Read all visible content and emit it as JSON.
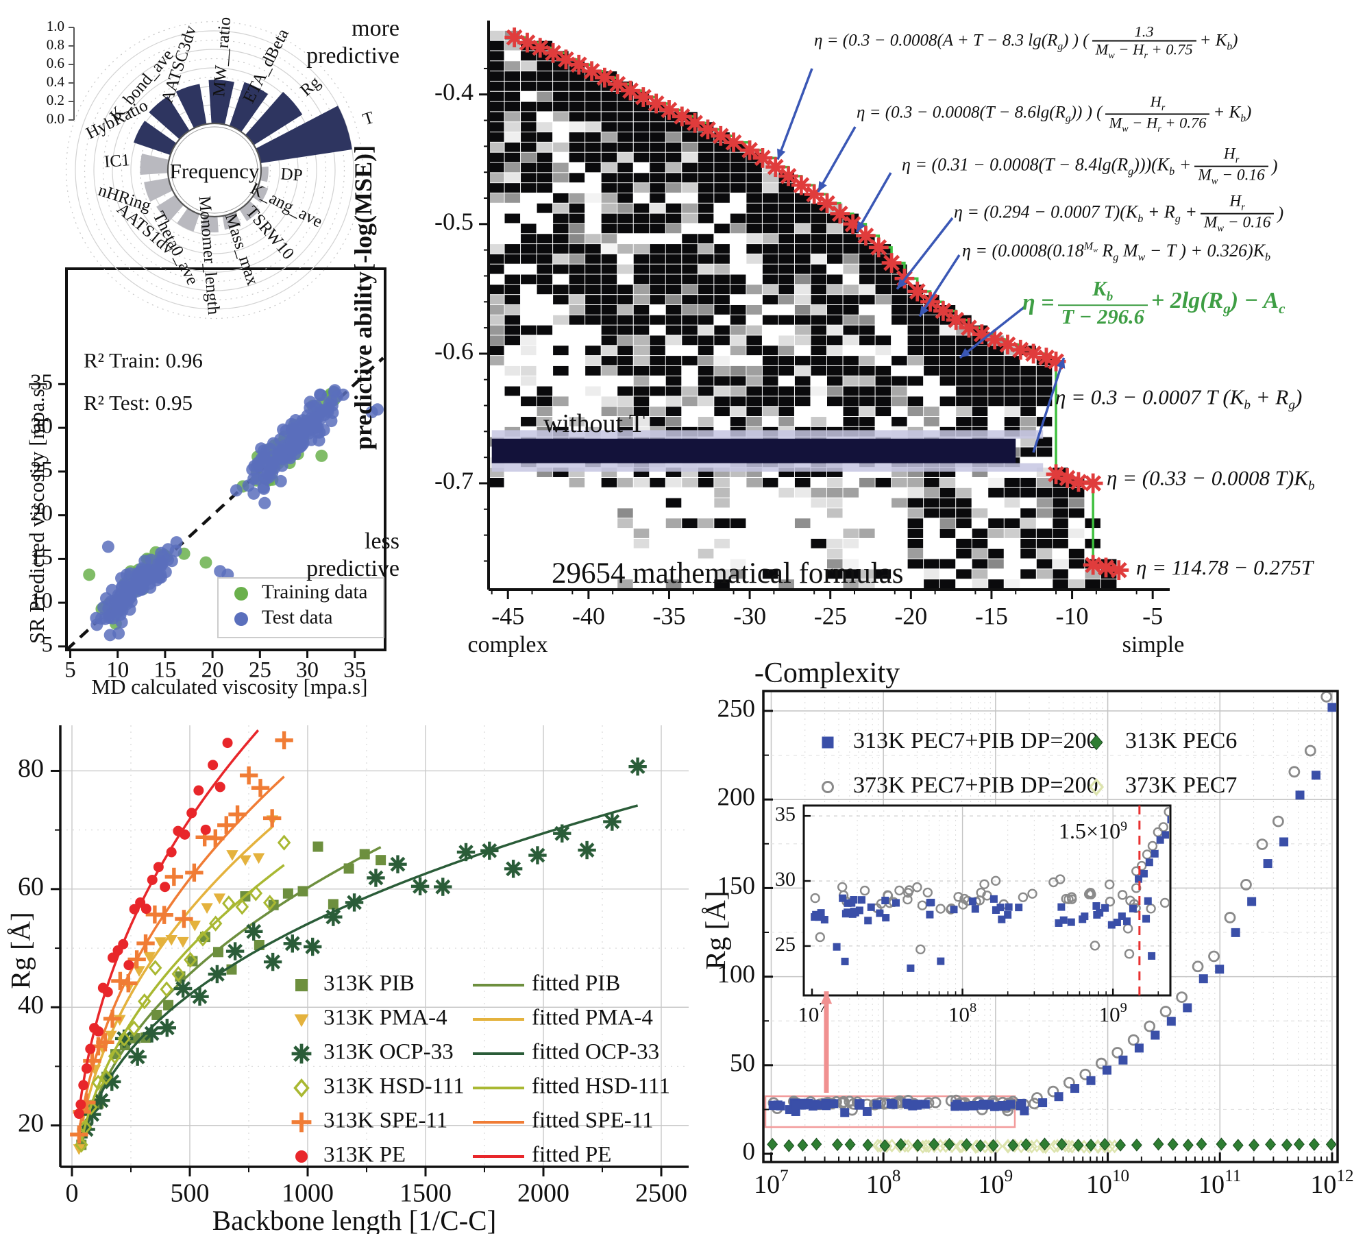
{
  "chart_data": [
    {
      "id": "feature-frequency-polar",
      "type": "bar",
      "subtype": "polar",
      "title": "Frequency",
      "radial_ticks": [
        "0.0",
        "0.2",
        "0.4",
        "0.6",
        "0.8",
        "1.0"
      ],
      "radial_range": [
        0.0,
        1.0
      ],
      "major_color": "#2e3560",
      "minor_color": "#b9b9bf",
      "categories": [
        "T",
        "Rg",
        "ETA_dBeta",
        "MW__ratio",
        "AATSC3dv",
        "K_bond_ave",
        "HybRatio",
        "IC1",
        "nHRing",
        "AATS1dv",
        "Theta0_ave",
        "Monomer_length",
        "Mass_max",
        "TSRW10",
        "K_ang_ave",
        "DP"
      ],
      "values": [
        1.0,
        0.62,
        0.5,
        0.47,
        0.44,
        0.44,
        0.42,
        0.3,
        0.27,
        0.24,
        0.2,
        0.17,
        0.15,
        0.15,
        0.11,
        0.08
      ],
      "groups": [
        "major",
        "major",
        "major",
        "major",
        "major",
        "major",
        "major",
        "minor",
        "minor",
        "minor",
        "minor",
        "minor",
        "minor",
        "minor",
        "minor",
        "minor"
      ]
    },
    {
      "id": "viscosity-parity-scatter",
      "type": "scatter",
      "r2_train": "R² Train: 0.96",
      "r2_test": "R² Test: 0.95",
      "xlabel": "MD calculated viscosity [mpa.s]",
      "ylabel": "SR Predicted viscosity [mpa.s]",
      "xticks": [
        5,
        10,
        15,
        20,
        25,
        30,
        35
      ],
      "yticks": [
        5,
        10,
        15,
        20,
        25,
        30,
        35
      ],
      "xlim": [
        4.6,
        38.2
      ],
      "ylim": [
        4.6,
        48.2
      ],
      "identity_line": true,
      "legend": [
        {
          "label": "Training data",
          "color": "#6ab04c"
        },
        {
          "label": "Test data",
          "color": "#5a6fbc"
        }
      ],
      "series": [
        {
          "name": "Training data",
          "color": "#6ab04c",
          "seed": 7,
          "clusters": [
            {
              "cx": 12.0,
              "cy": 12.3,
              "sx": 2.1,
              "sy": 1.5,
              "n": 34
            },
            {
              "cx": 28.2,
              "cy": 28.1,
              "sx": 3.0,
              "sy": 2.0,
              "n": 52
            }
          ],
          "extra": [
            [
              7.0,
              13.2
            ],
            [
              19.3,
              14.6
            ],
            [
              9.8,
              7.6
            ],
            [
              23.2,
              23.3
            ],
            [
              31.5,
              26.8
            ],
            [
              17.0,
              15.6
            ]
          ]
        },
        {
          "name": "Test data",
          "color": "#5a6fbc",
          "seed": 13,
          "clusters": [
            {
              "cx": 12.2,
              "cy": 12.1,
              "sx": 2.4,
              "sy": 1.7,
              "n": 115
            },
            {
              "cx": 28.4,
              "cy": 28.6,
              "sx": 3.2,
              "sy": 2.1,
              "n": 135
            }
          ],
          "extra": [
            [
              9.0,
              16.4
            ],
            [
              20.8,
              13.6
            ],
            [
              21.6,
              13.2
            ],
            [
              25.5,
              21.4
            ],
            [
              9.2,
              6.3
            ],
            [
              27.2,
              23.9
            ],
            [
              36.8,
              31.8
            ],
            [
              37.4,
              32.1
            ],
            [
              10.1,
              6.5
            ]
          ]
        }
      ]
    },
    {
      "id": "pareto-front-heatmap",
      "type": "heatmap",
      "ylabel": "predictive ability[-log(MSE)]",
      "xlabel": "-Complexity",
      "y_top_label_1": "more",
      "y_top_label_2": "predictive",
      "y_bottom_label_1": "less",
      "y_bottom_label_2": "predictive",
      "x_left_label": "complex",
      "x_right_label": "simple",
      "region_label": "without T",
      "count_label": "29654 mathematical formulas",
      "xticks": [
        -45,
        -40,
        -35,
        -30,
        -25,
        -20,
        -15,
        -10,
        -5
      ],
      "yticks": [
        -0.4,
        -0.5,
        -0.6,
        -0.7
      ],
      "xlim": [
        -46.2,
        -4.2
      ],
      "ylim": [
        -0.782,
        -0.343
      ],
      "front_color": "#3fbf3f",
      "star_color": "#e03c3c",
      "arrow_color": "#3a57b5",
      "band_color": "#13123a",
      "band_halo_color": "#c6c6e2",
      "band_x_range": [
        -46.0,
        -13.5
      ],
      "band_y_center": -0.675,
      "heatmap_seed": 99,
      "front": [
        [
          -44.6,
          -0.356
        ],
        [
          -43.8,
          -0.36
        ],
        [
          -43.0,
          -0.364
        ],
        [
          -42.2,
          -0.368
        ],
        [
          -41.4,
          -0.373
        ],
        [
          -40.6,
          -0.377
        ],
        [
          -39.8,
          -0.382
        ],
        [
          -39.0,
          -0.387
        ],
        [
          -38.2,
          -0.392
        ],
        [
          -37.4,
          -0.397
        ],
        [
          -36.6,
          -0.402
        ],
        [
          -35.8,
          -0.407
        ],
        [
          -35.0,
          -0.412
        ],
        [
          -34.2,
          -0.417
        ],
        [
          -33.4,
          -0.422
        ],
        [
          -32.6,
          -0.427
        ],
        [
          -31.8,
          -0.432
        ],
        [
          -31.0,
          -0.437
        ],
        [
          -30.0,
          -0.443
        ],
        [
          -29.2,
          -0.449
        ],
        [
          -28.4,
          -0.456
        ],
        [
          -27.6,
          -0.463
        ],
        [
          -26.8,
          -0.47
        ],
        [
          -26.0,
          -0.477
        ],
        [
          -25.2,
          -0.484
        ],
        [
          -24.4,
          -0.492
        ],
        [
          -23.6,
          -0.5
        ],
        [
          -22.8,
          -0.509
        ],
        [
          -22.0,
          -0.518
        ],
        [
          -21.2,
          -0.53
        ],
        [
          -20.4,
          -0.542
        ],
        [
          -19.6,
          -0.552
        ],
        [
          -18.8,
          -0.56
        ],
        [
          -18.0,
          -0.567
        ],
        [
          -17.2,
          -0.574
        ],
        [
          -16.4,
          -0.58
        ],
        [
          -15.6,
          -0.585
        ],
        [
          -14.8,
          -0.589
        ],
        [
          -14.0,
          -0.593
        ],
        [
          -13.2,
          -0.597
        ],
        [
          -12.4,
          -0.6
        ],
        [
          -11.6,
          -0.603
        ],
        [
          -11.0,
          -0.606
        ],
        [
          -11.0,
          -0.693
        ],
        [
          -10.3,
          -0.696
        ],
        [
          -9.6,
          -0.699
        ],
        [
          -8.7,
          -0.7
        ],
        [
          -8.7,
          -0.763
        ],
        [
          -7.9,
          -0.765
        ],
        [
          -7.1,
          -0.767
        ]
      ],
      "formulas": [
        {
          "color": "#111111",
          "highlight": false,
          "parts": [
            {
              "t": "η =  (0.3 − 0.0008(A + T −  8.3 lg(R_g) )  ("
            },
            {
              "n": "1.3",
              "d": "M_w − H_r + 0.75"
            },
            {
              "t": "+ K_b)"
            }
          ]
        },
        {
          "color": "#111111",
          "highlight": false,
          "parts": [
            {
              "t": "η = (0.3 − 0.0008(T − 8.6lg(R_g)) )  ("
            },
            {
              "n": "H_r",
              "d": "M_w − H_r + 0.76"
            },
            {
              "t": "+ K_b)"
            }
          ]
        },
        {
          "color": "#111111",
          "highlight": false,
          "parts": [
            {
              "t": "η = (0.31 − 0.0008(T − 8.4lg(R_g)))(K_b +"
            },
            {
              "n": "H_r",
              "d": "M_w − 0.16"
            },
            {
              "t": ")"
            }
          ]
        },
        {
          "color": "#111111",
          "highlight": false,
          "parts": [
            {
              "t": "η = (0.294 − 0.0007 T)(K_b + R_g +"
            },
            {
              "n": "H_r",
              "d": "M_w − 0.16"
            },
            {
              "t": ")"
            }
          ]
        },
        {
          "color": "#111111",
          "highlight": false,
          "parts": [
            {
              "t": "η = (0.0008(0.18^{M_w} R_g M_w − T ) + 0.326)K_b"
            }
          ]
        },
        {
          "color": "#3e9e44",
          "highlight": true,
          "parts": [
            {
              "t": "η ="
            },
            {
              "n": "K_b",
              "d": "T − 296.6"
            },
            {
              "t": "+ 2lg(R_g) − A_c"
            }
          ]
        },
        {
          "color": "#111111",
          "highlight": false,
          "parts": [
            {
              "t": "η = 0.3 − 0.0007 T (K_b + R_g)"
            }
          ]
        },
        {
          "color": "#111111",
          "highlight": false,
          "parts": [
            {
              "t": "η = (0.33 − 0.0008 T)K_b"
            }
          ]
        },
        {
          "color": "#111111",
          "highlight": false,
          "parts": [
            {
              "t": "η = 114.78 − 0.275T"
            }
          ]
        }
      ]
    },
    {
      "id": "rg-vs-backbone-length",
      "type": "scatter",
      "xlabel": "Backbone length [1/C-C]",
      "ylabel": "Rg [Å]",
      "xticks": [
        0,
        500,
        1000,
        1500,
        2000,
        2500
      ],
      "yticks": [
        20,
        40,
        60,
        80
      ],
      "xlim": [
        0,
        2560
      ],
      "ylim": [
        13,
        88.5
      ],
      "series": [
        {
          "label": "313K PIB",
          "fitted_label": "fitted PIB",
          "color": "#6d8f3e",
          "marker": "square",
          "a": 3.8,
          "b": 0.4,
          "xmin": 40,
          "xmax": 1310,
          "n": 26,
          "noise": 0.09,
          "seed": 11
        },
        {
          "label": "313K PMA-4",
          "fitted_label": "fitted PMA-4",
          "color": "#e4b23d",
          "marker": "tridown",
          "a": 4.15,
          "b": 0.42,
          "xmin": 30,
          "xmax": 850,
          "n": 20,
          "noise": 0.07,
          "seed": 12
        },
        {
          "label": "313K OCP-33",
          "fitted_label": "fitted OCP-33",
          "color": "#2a5c38",
          "marker": "star8",
          "a": 4.5,
          "b": 0.36,
          "xmin": 60,
          "xmax": 2400,
          "n": 30,
          "noise": 0.08,
          "seed": 14
        },
        {
          "label": "313K HSD-111",
          "fitted_label": "fitted HSD-111",
          "color": "#a9b832",
          "marker": "odiamond",
          "a": 3.68,
          "b": 0.42,
          "xmin": 40,
          "xmax": 900,
          "n": 20,
          "noise": 0.06,
          "seed": 15
        },
        {
          "label": "313K SPE-11",
          "fitted_label": "fitted SPE-11",
          "color": "#f07c35",
          "marker": "plus",
          "a": 4.54,
          "b": 0.42,
          "xmin": 30,
          "xmax": 900,
          "n": 24,
          "noise": 0.07,
          "seed": 16
        },
        {
          "label": "313K PE",
          "fitted_label": "fitted PE",
          "color": "#e8262a",
          "marker": "circle",
          "a": 5.45,
          "b": 0.415,
          "xmin": 30,
          "xmax": 660,
          "n": 28,
          "noise": 0.08,
          "seed": 17,
          "fit_xmax": 790
        }
      ]
    },
    {
      "id": "rg-vs-shear-rate-log",
      "type": "scatter",
      "xscale": "log",
      "ylabel": "Rg [Å]",
      "x_decades": [
        7,
        8,
        9,
        10,
        11,
        12
      ],
      "yticks": [
        0,
        50,
        100,
        150,
        200,
        250
      ],
      "ylim": [
        0,
        262
      ],
      "legend": [
        {
          "label": "313K PEC7+PIB DP=200",
          "marker": "square",
          "color": "#3a4fa8"
        },
        {
          "label": "373K PEC7+PIB DP=200",
          "marker": "ocircle",
          "color": "#8a8a8a"
        },
        {
          "label": "313K PEC6",
          "marker": "diamond",
          "color": "#2e7d32"
        },
        {
          "label": "373K PEC7",
          "marker": "odiamond",
          "color": "#dde4ae"
        }
      ],
      "series_specs": {
        "flat": {
          "n": 58,
          "lx0": 7.0,
          "lx1": 9.36,
          "y_blue": 27.6,
          "y_gray": 28.8,
          "jitter": 1.3,
          "dip": 3.4,
          "seed": 23
        },
        "rise": {
          "n": 19,
          "lx0": 9.42,
          "lx1": 12.0,
          "base": 28,
          "pivot": 9.35,
          "exp": 0.36,
          "jitter": 0.1,
          "seed": 29
        },
        "pec6": {
          "n": 36,
          "lx0": 7.0,
          "lx1": 12.0,
          "y": 5.0,
          "jitter": 1.0,
          "seed": 31
        },
        "pec7": {
          "n": 46,
          "lx0": 7.95,
          "lx1": 10.08,
          "y": 4.2,
          "jitter": 0.9,
          "seed": 37
        },
        "inset_tail": {
          "n": 7,
          "lx0": 9.17,
          "dlx": 0.036,
          "y0": 29.8,
          "dy": 0.75,
          "seed": 41
        }
      },
      "inset": {
        "x_decades": [
          7,
          8,
          9
        ],
        "yticks": [
          25,
          30,
          35
        ],
        "ylim": [
          21.2,
          35.8
        ],
        "vline_value": 1500000000,
        "vline_log10": 9.176,
        "annotation_base": "1.5×10",
        "annotation_exp": "9",
        "vline_color": "#e83030"
      },
      "highlight_box_color": "#f29b9b",
      "arrow_color": "#f09090"
    }
  ]
}
